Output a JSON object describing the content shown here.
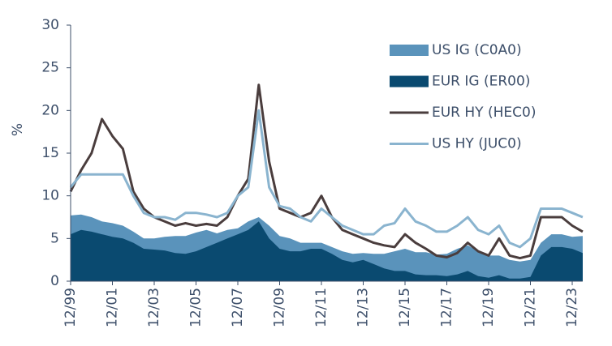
{
  "chart_data": {
    "type": "line",
    "y_label": "%",
    "categories": [
      "12/99",
      null,
      null,
      null,
      "12/01",
      null,
      null,
      null,
      "12/03",
      null,
      null,
      null,
      "12/05",
      null,
      null,
      null,
      "12/07",
      null,
      null,
      null,
      "12/09",
      null,
      null,
      null,
      "12/11",
      null,
      null,
      null,
      "12/13",
      null,
      null,
      null,
      "12/15",
      null,
      null,
      null,
      "12/17",
      null,
      null,
      null,
      "12/19",
      null,
      null,
      null,
      "12/21",
      null,
      null,
      null,
      "12/23",
      null
    ],
    "ylim": [
      0,
      30
    ],
    "yticks": [
      0,
      5,
      10,
      15,
      20,
      25,
      30
    ],
    "series": [
      {
        "name": "US IG (C0A0)",
        "color": "#5a93bb",
        "fill": true,
        "values": [
          7.7,
          7.8,
          7.5,
          7,
          6.8,
          6.5,
          5.8,
          5,
          5,
          5.2,
          5.3,
          5.3,
          5.7,
          6,
          5.6,
          6,
          6.2,
          7,
          7.5,
          6.5,
          5.3,
          5,
          4.5,
          4.5,
          4.5,
          4,
          3.5,
          3.2,
          3.3,
          3.2,
          3.2,
          3.5,
          3.8,
          3.4,
          3.4,
          3.1,
          3.2,
          3.8,
          4.2,
          3.5,
          3,
          3,
          2.5,
          2.3,
          2.5,
          4.5,
          5.5,
          5.5,
          5.2,
          5.3
        ]
      },
      {
        "name": "EUR IG (ER00)",
        "color": "#0a4a70",
        "fill": true,
        "values": [
          5.5,
          6,
          5.8,
          5.5,
          5.2,
          5,
          4.5,
          3.8,
          3.7,
          3.6,
          3.3,
          3.2,
          3.5,
          4,
          4.5,
          5,
          5.5,
          6,
          7,
          5,
          3.8,
          3.5,
          3.5,
          3.8,
          3.8,
          3.2,
          2.5,
          2.2,
          2.5,
          2,
          1.5,
          1.2,
          1.2,
          0.8,
          0.7,
          0.7,
          0.6,
          0.8,
          1.2,
          0.6,
          0.4,
          0.7,
          0.3,
          0.3,
          0.5,
          3,
          4,
          4,
          3.8,
          3.3
        ]
      },
      {
        "name": "EUR HY (HEC0)",
        "color": "#4a3d3d",
        "fill": false,
        "values": [
          10.5,
          13,
          15,
          19,
          17,
          15.5,
          10.5,
          8.5,
          7.5,
          7,
          6.5,
          6.8,
          6.5,
          6.7,
          6.5,
          7.5,
          10,
          12,
          23,
          14,
          8.5,
          8,
          7.5,
          8,
          10,
          7.5,
          6,
          5.5,
          5,
          4.5,
          4.2,
          4,
          5.5,
          4.5,
          3.8,
          3,
          2.8,
          3.3,
          4.5,
          3.5,
          3,
          5,
          3,
          2.7,
          3,
          7.5,
          7.5,
          7.5,
          6.5,
          5.8
        ]
      },
      {
        "name": "US HY (JUC0)",
        "color": "#8ab4cf",
        "fill": false,
        "values": [
          11,
          12.5,
          12.5,
          12.5,
          12.5,
          12.5,
          10,
          8,
          7.5,
          7.5,
          7.2,
          8,
          8,
          7.8,
          7.5,
          8,
          10,
          11,
          20,
          11,
          8.8,
          8.5,
          7.5,
          7,
          8.5,
          7.5,
          6.5,
          6,
          5.5,
          5.5,
          6.5,
          6.8,
          8.5,
          7,
          6.5,
          5.8,
          5.8,
          6.5,
          7.5,
          6,
          5.5,
          6.5,
          4.5,
          4,
          5,
          8.5,
          8.5,
          8.5,
          8,
          7.5
        ]
      }
    ]
  }
}
